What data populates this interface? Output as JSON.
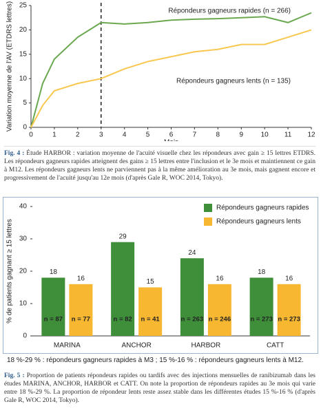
{
  "chart_data": [
    {
      "type": "line",
      "ylabel": "Variation moyenne de l'AV (ETDRS lettres)",
      "xlabel": "Mois",
      "x": [
        0,
        0.5,
        1,
        2,
        3,
        4,
        5,
        6,
        7,
        8,
        9,
        10,
        11,
        12
      ],
      "xlim": [
        0,
        12
      ],
      "xticks": [
        0,
        1,
        2,
        3,
        4,
        5,
        6,
        7,
        8,
        9,
        10,
        11,
        12
      ],
      "ylim": [
        0,
        25
      ],
      "yticks": [
        0,
        5,
        10,
        15,
        20,
        25
      ],
      "vline": 3,
      "series": [
        {
          "name": "Répondeurs gagneurs rapides (n = 266)",
          "color": "#6aa84f",
          "values": [
            0,
            9,
            14,
            18.5,
            21.5,
            21.2,
            21.5,
            22,
            22.2,
            22.3,
            22.5,
            22.7,
            21.5,
            23.5
          ]
        },
        {
          "name": "Répondeurs gagneurs lents (n = 135)",
          "color": "#f9c74f",
          "values": [
            0,
            4.5,
            7.5,
            9,
            10,
            12,
            13.5,
            14.5,
            15.5,
            16,
            17,
            17,
            18.5,
            20
          ]
        }
      ]
    },
    {
      "type": "bar",
      "ylabel": "% de patients gagnant ≥ 15 lettres",
      "categories": [
        "MARINA",
        "ANCHOR",
        "HARBOR",
        "CATT"
      ],
      "ylim": [
        0,
        40
      ],
      "yticks": [
        0,
        10,
        20,
        30,
        40
      ],
      "legend": "top-right",
      "series": [
        {
          "name": "Répondeurs gagneurs rapides",
          "color": "#3f8f3a",
          "values": [
            18,
            29,
            24,
            18
          ],
          "n_labels": [
            "n = 87",
            "n = 82",
            "n = 263",
            "n = 273"
          ]
        },
        {
          "name": "Répondeurs gagneurs lents",
          "color": "#f7b731",
          "values": [
            16,
            15,
            16,
            16
          ],
          "n_labels": [
            "n = 77",
            "n = 41",
            "n = 246",
            "n = 273"
          ]
        }
      ],
      "note": "18 %-29 % : répondeurs gagneurs rapides à M3 ; 15 %-16 % : répondeurs gagneurs lents à M12."
    }
  ],
  "captions": [
    {
      "label": "Fig. 4 :",
      "text": "Étude HARBOR : variation moyenne de l'acuité visuelle chez les répondeurs avec gain ≥ 15 lettres ETDRS. Les répondeurs gagneurs rapides atteignent des gains ≥ 15 lettres entre l'inclusion et le 3e mois et maintiennent ce gain à M12. Les répondeurs gagneurs lents ne parviennent pas à la même amélioration au 3e mois, mais gagnent encore et progressivement de l'acuité jusqu'au 12e mois (d'après Gale R, WOC 2014, Tokyo)."
    },
    {
      "label": "Fig. 5 :",
      "text": "Proportion de patients répondeurs rapides ou tardifs avec des injections mensuelles de ranibizumab dans les études MARINA, ANCHOR, HARBOR et CATT. On note la proportion de répondeurs rapides au 3e mois qui varie entre 18 %-29 %. La proportion de répondeur lents reste assez stable dans les différentes études 15 %-16 % (d'après Gale R, WOC 2014, Tokyo)."
    }
  ]
}
